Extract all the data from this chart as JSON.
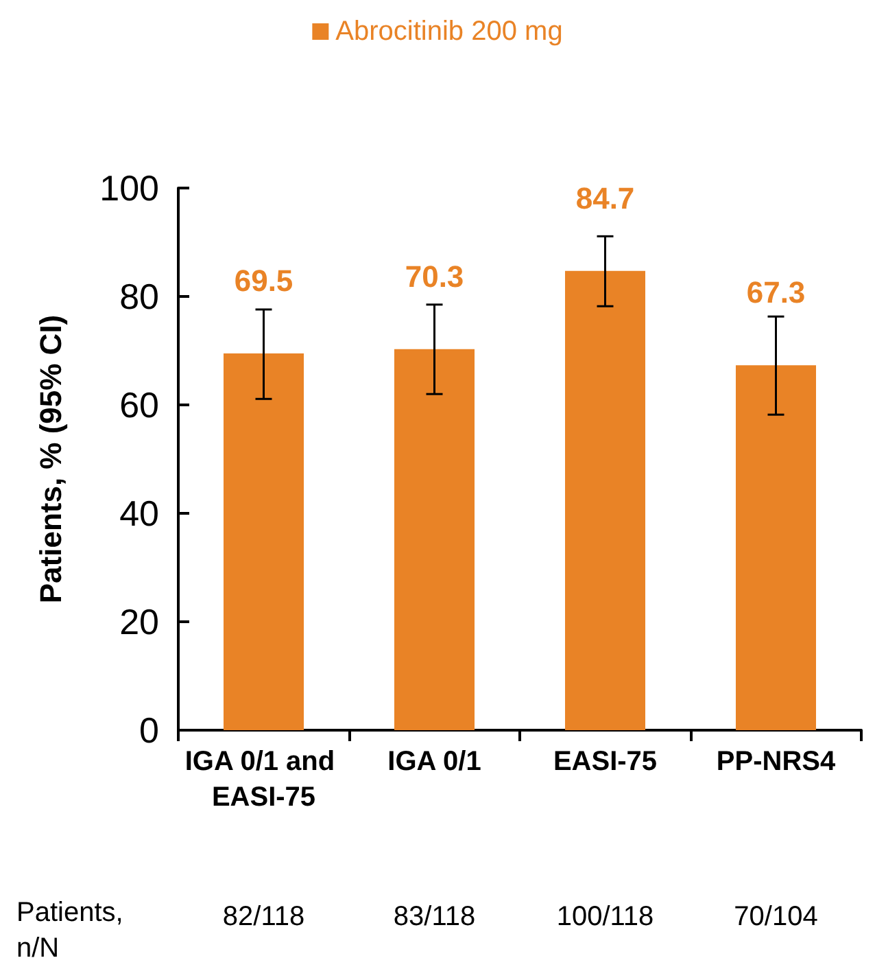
{
  "chart_data": {
    "type": "bar",
    "ylabel": "Patients, % (95% CI)",
    "categories": [
      "IGA 0/1 and EASI-75",
      "IGA 0/1",
      "EASI-75",
      "PP-NRS4"
    ],
    "series": [
      {
        "name": "Abrocitinib 200 mg",
        "color": "#e98326",
        "values": [
          69.5,
          70.3,
          84.7,
          67.3
        ],
        "errors": [
          [
            61.1,
            77.6
          ],
          [
            62.0,
            78.5
          ],
          [
            78.2,
            91.1
          ],
          [
            58.2,
            76.3
          ]
        ]
      }
    ],
    "data_labels": true,
    "ylim": [
      0,
      100
    ],
    "yticks": [
      0,
      20,
      40,
      60,
      80,
      100
    ],
    "grid": false,
    "legend": "top",
    "annotations": [
      "Patients, n/N",
      "82/118",
      "83/118",
      "100/118",
      "70/104"
    ]
  }
}
